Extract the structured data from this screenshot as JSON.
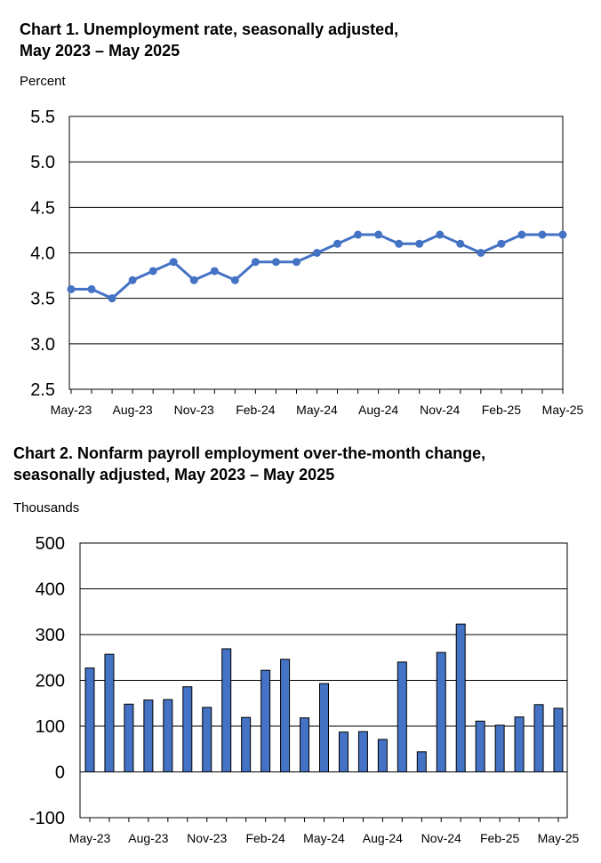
{
  "chart_data": [
    {
      "type": "line",
      "title_line1": "Chart 1. Unemployment rate, seasonally adjusted,",
      "title_line2": "May 2023 – May 2025",
      "ylabel": "Percent",
      "ylim": [
        2.5,
        5.5
      ],
      "yticks": [
        "2.5",
        "3.0",
        "3.5",
        "4.0",
        "4.5",
        "5.0",
        "5.5"
      ],
      "xtick_labels": [
        "May-23",
        "Aug-23",
        "Nov-23",
        "Feb-24",
        "May-24",
        "Aug-24",
        "Nov-24",
        "Feb-25",
        "May-25"
      ],
      "grid": true,
      "color": "#4472C4",
      "values": [
        3.6,
        3.6,
        3.5,
        3.7,
        3.8,
        3.9,
        3.7,
        3.8,
        3.7,
        3.9,
        3.9,
        3.9,
        4.0,
        4.1,
        4.2,
        4.2,
        4.1,
        4.1,
        4.2,
        4.1,
        4.0,
        4.1,
        4.2,
        4.2,
        4.2
      ]
    },
    {
      "type": "bar",
      "title_line1": "Chart 2. Nonfarm payroll employment over-the-month change,",
      "title_line2": "seasonally adjusted, May 2023 – May 2025",
      "ylabel": "Thousands",
      "ylim": [
        -100,
        500
      ],
      "yticks": [
        "-100",
        "0",
        "100",
        "200",
        "300",
        "400",
        "500"
      ],
      "xtick_labels": [
        "May-23",
        "Aug-23",
        "Nov-23",
        "Feb-24",
        "May-24",
        "Aug-24",
        "Nov-24",
        "Feb-25",
        "May-25"
      ],
      "grid": true,
      "color": "#4472C4",
      "values": [
        227,
        257,
        148,
        157,
        158,
        186,
        141,
        269,
        119,
        222,
        246,
        118,
        193,
        87,
        88,
        71,
        240,
        44,
        261,
        323,
        111,
        102,
        120,
        147,
        139
      ]
    }
  ]
}
